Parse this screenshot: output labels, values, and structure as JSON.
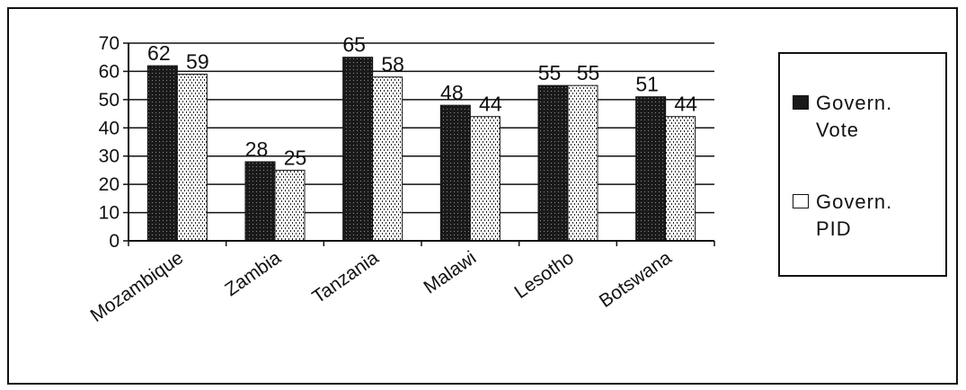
{
  "chart_data": {
    "type": "bar",
    "categories": [
      "Mozambique",
      "Zambia",
      "Tanzania",
      "Malawi",
      "Lesotho",
      "Botswana"
    ],
    "series": [
      {
        "name": "Govern. Vote",
        "values": [
          62,
          28,
          65,
          48,
          55,
          51
        ],
        "color": "#1a1a1a",
        "pattern": "dark-dotted"
      },
      {
        "name": "Govern. PID",
        "values": [
          59,
          25,
          58,
          44,
          55,
          44
        ],
        "color": "#ffffff",
        "pattern": "light-dotted"
      }
    ],
    "ylim": [
      0,
      70
    ],
    "yticks": [
      "0",
      "10",
      "20",
      "30",
      "40",
      "50",
      "60",
      "70"
    ],
    "grid": true,
    "legend_position": "right",
    "data_labels": true
  }
}
